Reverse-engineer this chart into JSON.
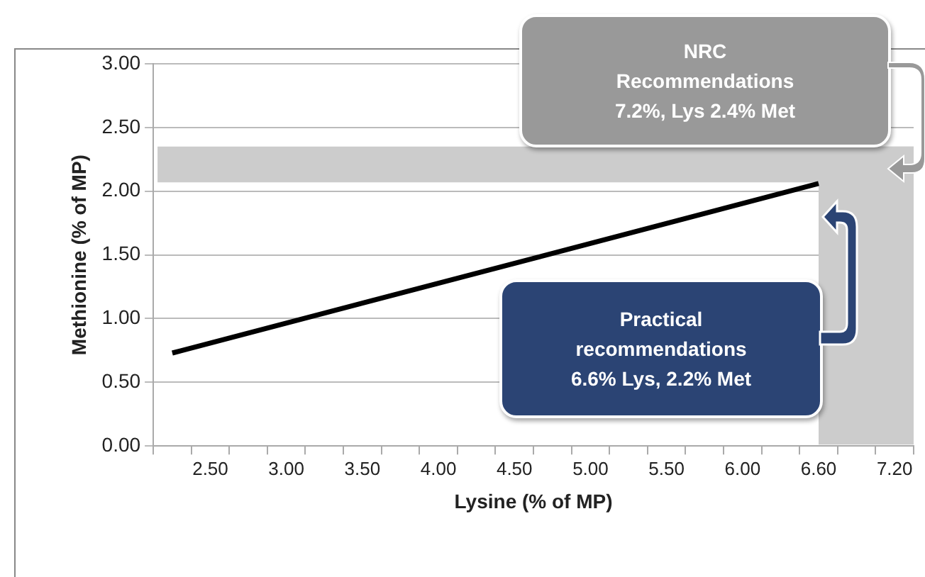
{
  "chart_data": {
    "type": "line",
    "xlabel": "Lysine (% of MP)",
    "ylabel": "Methionine (% of MP)",
    "categories": [
      null,
      "2.50",
      null,
      "3.00",
      null,
      "3.50",
      null,
      "4.00",
      null,
      "4.50",
      null,
      "5.00",
      null,
      "5.50",
      null,
      "6.00",
      null,
      "6.60",
      null,
      "7.20"
    ],
    "series": [
      {
        "color": "#000000",
        "values": [
          0.73,
          null,
          null,
          null,
          null,
          null,
          null,
          null,
          null,
          null,
          null,
          null,
          null,
          null,
          null,
          null,
          null,
          2.06,
          null,
          null
        ]
      }
    ],
    "ylim": [
      0,
      3
    ],
    "yticks": [
      {
        "value": 0,
        "label": "0.00"
      },
      {
        "value": 0.5,
        "label": "0.50"
      },
      {
        "value": 1,
        "label": "1.00"
      },
      {
        "value": 1.5,
        "label": "1.50"
      },
      {
        "value": 2,
        "label": "2.00"
      },
      {
        "value": 2.5,
        "label": "2.50"
      },
      {
        "value": 3,
        "label": "3.00"
      }
    ],
    "grid": "y",
    "legend": false,
    "marker": "none",
    "line_style": "solid",
    "bands": [
      {
        "axis": "y",
        "from": 2.07,
        "to": 2.35,
        "color": "#cccccc"
      },
      {
        "axis": "x",
        "from": "6.60",
        "to": "7.20",
        "color": "#cccccc"
      }
    ],
    "annotations": [
      "NRC\nRecommendations\n7.2%, Lys 2.4% Met",
      "Practical\nrecommendations\n6.6% Lys, 2.2% Met"
    ]
  }
}
